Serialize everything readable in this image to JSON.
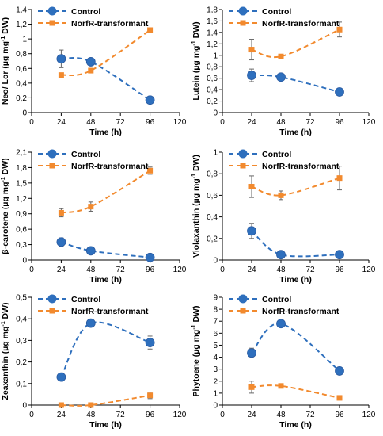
{
  "colors": {
    "control": "#2e6fbd",
    "transformant": "#f28a2e",
    "axis": "#000000"
  },
  "chart_data": [
    {
      "type": "line",
      "ylabel_parts": [
        "Neo/ Lor (µg mg",
        "-1",
        " DW)"
      ],
      "xlabel": "Time (h)",
      "xticks": [
        "0",
        "24",
        "48",
        "72",
        "96",
        "120"
      ],
      "yticks": [
        "0",
        "0,2",
        "0,4",
        "0,6",
        "0,8",
        "1",
        "1,2",
        "1,4"
      ],
      "xlim": [
        0,
        120
      ],
      "ylim": [
        0,
        1.4
      ],
      "legend": [
        "Control",
        "NorfR-transformant"
      ],
      "series": [
        {
          "name": "Control",
          "x": [
            24,
            48,
            96
          ],
          "y": [
            0.73,
            0.69,
            0.17
          ],
          "err": [
            0.12,
            0.03,
            0.02
          ]
        },
        {
          "name": "NorfR-transformant",
          "x": [
            24,
            48,
            96
          ],
          "y": [
            0.51,
            0.57,
            1.12
          ],
          "err": [
            0.02,
            0.03,
            0.02
          ]
        }
      ]
    },
    {
      "type": "line",
      "ylabel_parts": [
        "Lutein (µg mg",
        "-1",
        " DW)"
      ],
      "xlabel": "Time (h)",
      "xticks": [
        "0",
        "24",
        "48",
        "72",
        "96",
        "120"
      ],
      "yticks": [
        "0",
        "0,2",
        "0,4",
        "0,6",
        "0,8",
        "1",
        "1,2",
        "1,4",
        "1,6",
        "1,8"
      ],
      "xlim": [
        0,
        120
      ],
      "ylim": [
        0,
        1.8
      ],
      "legend": [
        "Control",
        "NorfR-transformant"
      ],
      "series": [
        {
          "name": "Control",
          "x": [
            24,
            48,
            96
          ],
          "y": [
            0.65,
            0.62,
            0.36
          ],
          "err": [
            0.11,
            0.03,
            0.06
          ]
        },
        {
          "name": "NorfR-transformant",
          "x": [
            24,
            48,
            96
          ],
          "y": [
            1.1,
            0.98,
            1.45
          ],
          "err": [
            0.18,
            0.03,
            0.13
          ]
        }
      ]
    },
    {
      "type": "line",
      "ylabel_parts": [
        "β-carotene (µg mg",
        "-1",
        " DW)"
      ],
      "xlabel": "Time (h)",
      "xticks": [
        "0",
        "24",
        "48",
        "72",
        "96",
        "120"
      ],
      "yticks": [
        "0",
        "0,3",
        "0,6",
        "0,9",
        "1,2",
        "1,5",
        "1,8",
        "2,1"
      ],
      "xlim": [
        0,
        120
      ],
      "ylim": [
        0,
        2.1
      ],
      "legend": [
        "Control",
        "NorfR-transformant"
      ],
      "series": [
        {
          "name": "Control",
          "x": [
            24,
            48,
            96
          ],
          "y": [
            0.35,
            0.18,
            0.05
          ],
          "err": [
            0.08,
            0.07,
            0.06
          ]
        },
        {
          "name": "NorfR-transformant",
          "x": [
            24,
            48,
            96
          ],
          "y": [
            0.92,
            1.04,
            1.74
          ],
          "err": [
            0.08,
            0.09,
            0.07
          ]
        }
      ]
    },
    {
      "type": "line",
      "ylabel_parts": [
        "Violaxanthin (µg mg",
        "-1",
        " DW)"
      ],
      "xlabel": "Time (h)",
      "xticks": [
        "0",
        "24",
        "48",
        "72",
        "96",
        "120"
      ],
      "yticks": [
        "0",
        "0,2",
        "0,4",
        "0,6",
        "0,8",
        "1"
      ],
      "xlim": [
        0,
        120
      ],
      "ylim": [
        0,
        1
      ],
      "legend": [
        "Control",
        "NorfR-transformant"
      ],
      "series": [
        {
          "name": "Control",
          "x": [
            24,
            48,
            96
          ],
          "y": [
            0.27,
            0.05,
            0.05
          ],
          "err": [
            0.07,
            0.02,
            0.02
          ]
        },
        {
          "name": "NorfR-transformant",
          "x": [
            24,
            48,
            96
          ],
          "y": [
            0.68,
            0.6,
            0.76
          ],
          "err": [
            0.1,
            0.04,
            0.11
          ]
        }
      ]
    },
    {
      "type": "line",
      "ylabel_parts": [
        "Zeaxanthin (µg mg",
        "-1",
        " DW)"
      ],
      "xlabel": "Time (h)",
      "xticks": [
        "0",
        "24",
        "48",
        "72",
        "96",
        "120"
      ],
      "yticks": [
        "0",
        "0,1",
        "0,2",
        "0,3",
        "0,4",
        "0,5"
      ],
      "xlim": [
        0,
        120
      ],
      "ylim": [
        0,
        0.5
      ],
      "legend": [
        "Control",
        "NorfR-transformant"
      ],
      "series": [
        {
          "name": "Control",
          "x": [
            24,
            48,
            96
          ],
          "y": [
            0.13,
            0.38,
            0.29
          ],
          "err": [
            0.005,
            0.005,
            0.03
          ]
        },
        {
          "name": "NorfR-transformant",
          "x": [
            24,
            48,
            96
          ],
          "y": [
            0.0,
            0.0,
            0.045
          ],
          "err": [
            0.005,
            0.005,
            0.015
          ]
        }
      ]
    },
    {
      "type": "line",
      "ylabel_parts": [
        "Phytoene (µg mg",
        "-1",
        " DW)"
      ],
      "xlabel": "Time (h)",
      "xticks": [
        "0",
        "24",
        "48",
        "72",
        "96",
        "120"
      ],
      "yticks": [
        "0",
        "1",
        "2",
        "3",
        "4",
        "5",
        "6",
        "7",
        "8",
        "9"
      ],
      "xlim": [
        0,
        120
      ],
      "ylim": [
        0,
        9
      ],
      "legend": [
        "Control",
        "NorfR-transformant"
      ],
      "series": [
        {
          "name": "Control",
          "x": [
            24,
            48,
            96
          ],
          "y": [
            4.35,
            6.8,
            2.85
          ],
          "err": [
            0.4,
            0.1,
            0.1
          ]
        },
        {
          "name": "NorfR-transformant",
          "x": [
            24,
            48,
            96
          ],
          "y": [
            1.5,
            1.6,
            0.6
          ],
          "err": [
            0.5,
            0.1,
            0.1
          ]
        }
      ]
    }
  ]
}
